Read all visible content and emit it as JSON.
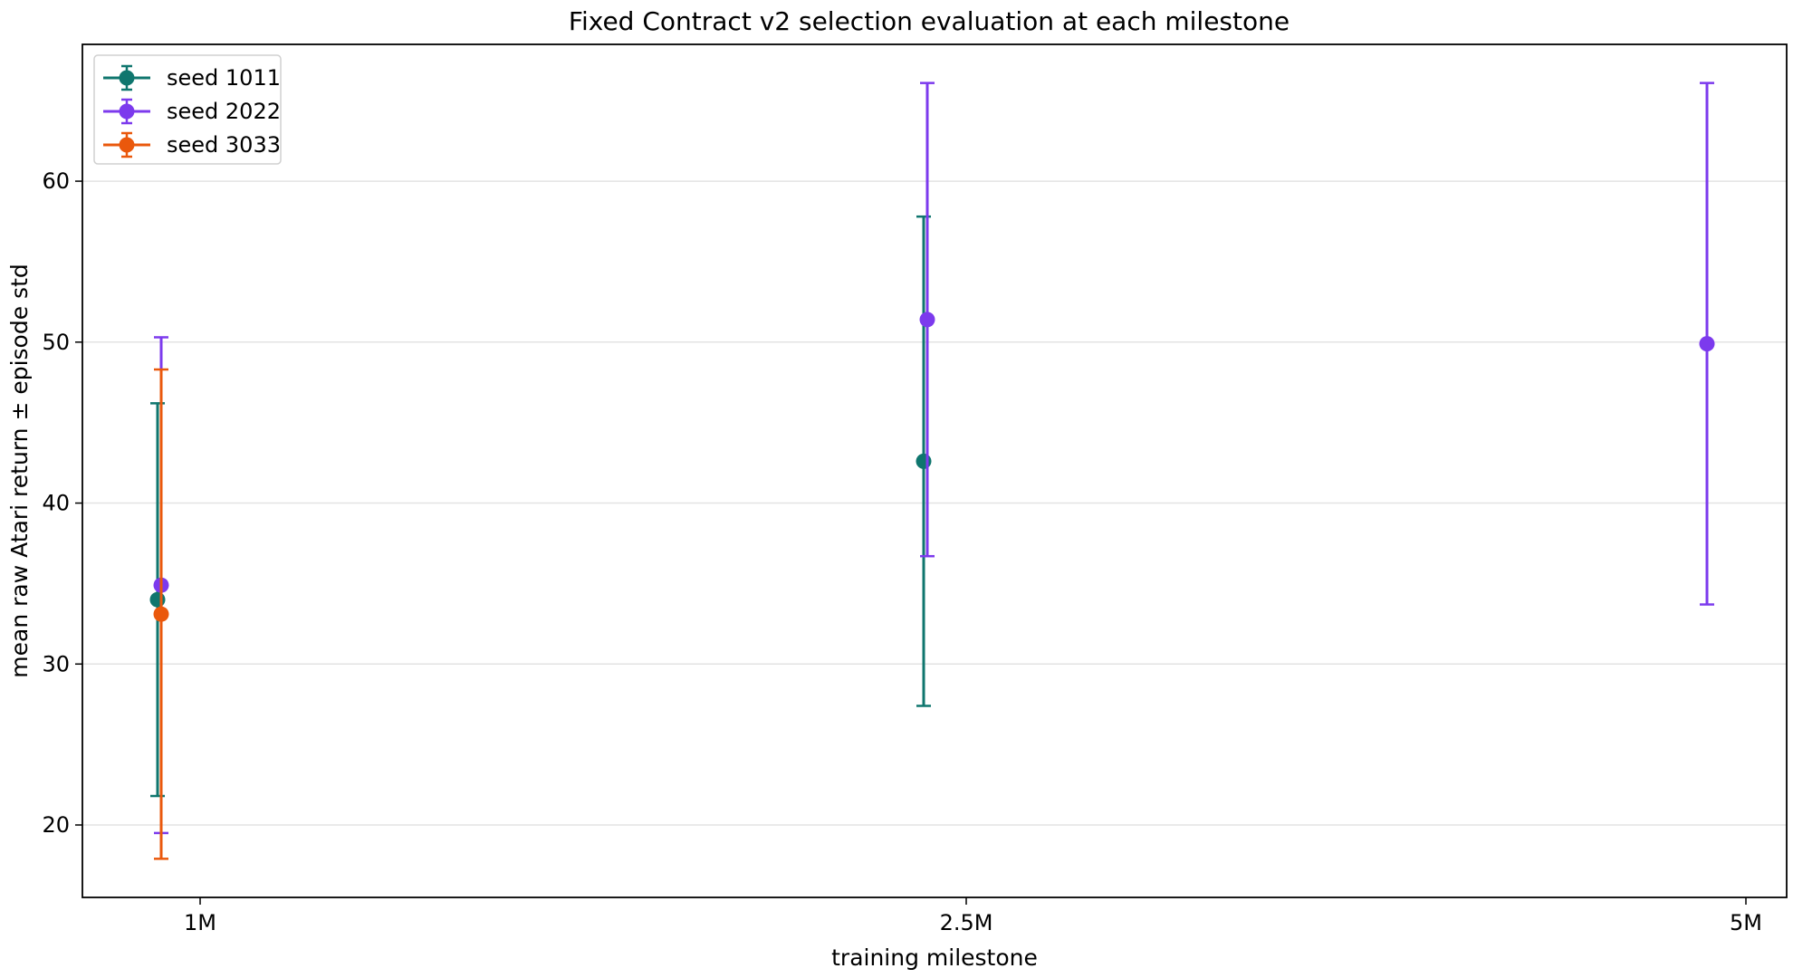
{
  "chart_data": {
    "type": "scatter",
    "title": "Fixed Contract v2 selection evaluation at each milestone",
    "xlabel": "training milestone",
    "ylabel": "mean raw Atari return ± episode std",
    "categories": [
      "1M",
      "2.5M",
      "5M"
    ],
    "ylim": [
      15.5,
      68.5
    ],
    "yticks": [
      20,
      30,
      40,
      50,
      60
    ],
    "grid": "horizontal",
    "legend_position": "top-left",
    "series": [
      {
        "name": "seed 1011",
        "color": "#0f766e",
        "points": [
          {
            "category": "1M",
            "mean": 34.0,
            "std": 12.2
          },
          {
            "category": "2.5M",
            "mean": 42.6,
            "std": 15.2
          }
        ]
      },
      {
        "name": "seed 2022",
        "color": "#7c3aed",
        "points": [
          {
            "category": "1M",
            "mean": 34.9,
            "std": 15.4
          },
          {
            "category": "2.5M",
            "mean": 51.4,
            "std": 14.7
          },
          {
            "category": "5M",
            "mean": 49.9,
            "std": 16.2
          }
        ]
      },
      {
        "name": "seed 3033",
        "color": "#ea580c",
        "points": [
          {
            "category": "1M",
            "mean": 33.1,
            "std": 15.2
          }
        ]
      }
    ]
  }
}
